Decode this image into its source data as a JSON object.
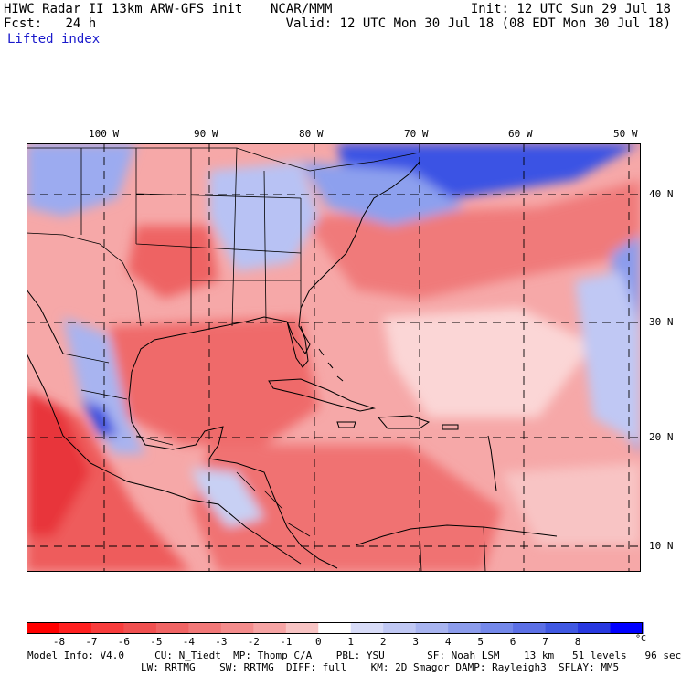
{
  "header": {
    "title": "HIWC Radar II 13km ARW-GFS init",
    "org": "NCAR/MMM",
    "init": "Init: 12 UTC Sun 29 Jul 18",
    "fcst_label": "Fcst:",
    "fcst_value": "24 h",
    "valid": "Valid: 12 UTC Mon 30 Jul 18 (08 EDT Mon 30 Jul 18)",
    "field": "Lifted index"
  },
  "map": {
    "lon_labels": [
      "100 W",
      "90 W",
      "80 W",
      "70 W",
      "60 W",
      "50 W"
    ],
    "lat_labels": [
      "40 N",
      "30 N",
      "20 N",
      "10 N"
    ],
    "lon_values": [
      -100,
      -90,
      -80,
      -70,
      -60,
      -50
    ],
    "lat_values": [
      40,
      30,
      20,
      10
    ],
    "extent": {
      "lon_min": -107.5,
      "lon_max": -48.5,
      "lat_min": 8.0,
      "lat_max": 45.5
    },
    "colors": {
      "strong_negative": "#e8343a",
      "negative": "#f07070",
      "weak_negative": "#f8b0b0",
      "neutral": "#ffffff",
      "weak_positive": "#c8d0f4",
      "positive": "#8098ee",
      "strong_positive": "#2838e0",
      "coast": "#000000",
      "grid": "#000000"
    }
  },
  "colorbar": {
    "ticks": [
      "-8",
      "-7",
      "-6",
      "-5",
      "-4",
      "-3",
      "-2",
      "-1",
      "0",
      "1",
      "2",
      "3",
      "4",
      "5",
      "6",
      "7",
      "8"
    ],
    "unit": "°C",
    "min": -9,
    "max": 9,
    "colors": [
      "#ff0000",
      "#ff2020",
      "#f83c3c",
      "#f05050",
      "#f06464",
      "#f27878",
      "#f48c8c",
      "#f6a4a4",
      "#f8c4c4",
      "#ffffff",
      "#d8dcf8",
      "#c0c8f4",
      "#a8b4f0",
      "#8c9cec",
      "#7488ea",
      "#5c70e6",
      "#4058e2",
      "#2838e0",
      "#0000ff"
    ]
  },
  "model_info": {
    "line1": "Model Info: V4.0     CU: N_Tiedt  MP: Thomp C/A    PBL: YSU       SF: Noah LSM    13 km   51 levels   96 sec",
    "line2": "LW: RRTMG    SW: RRTMG  DIFF: full    KM: 2D Smagor DAMP: Rayleigh3  SFLAY: MM5"
  }
}
